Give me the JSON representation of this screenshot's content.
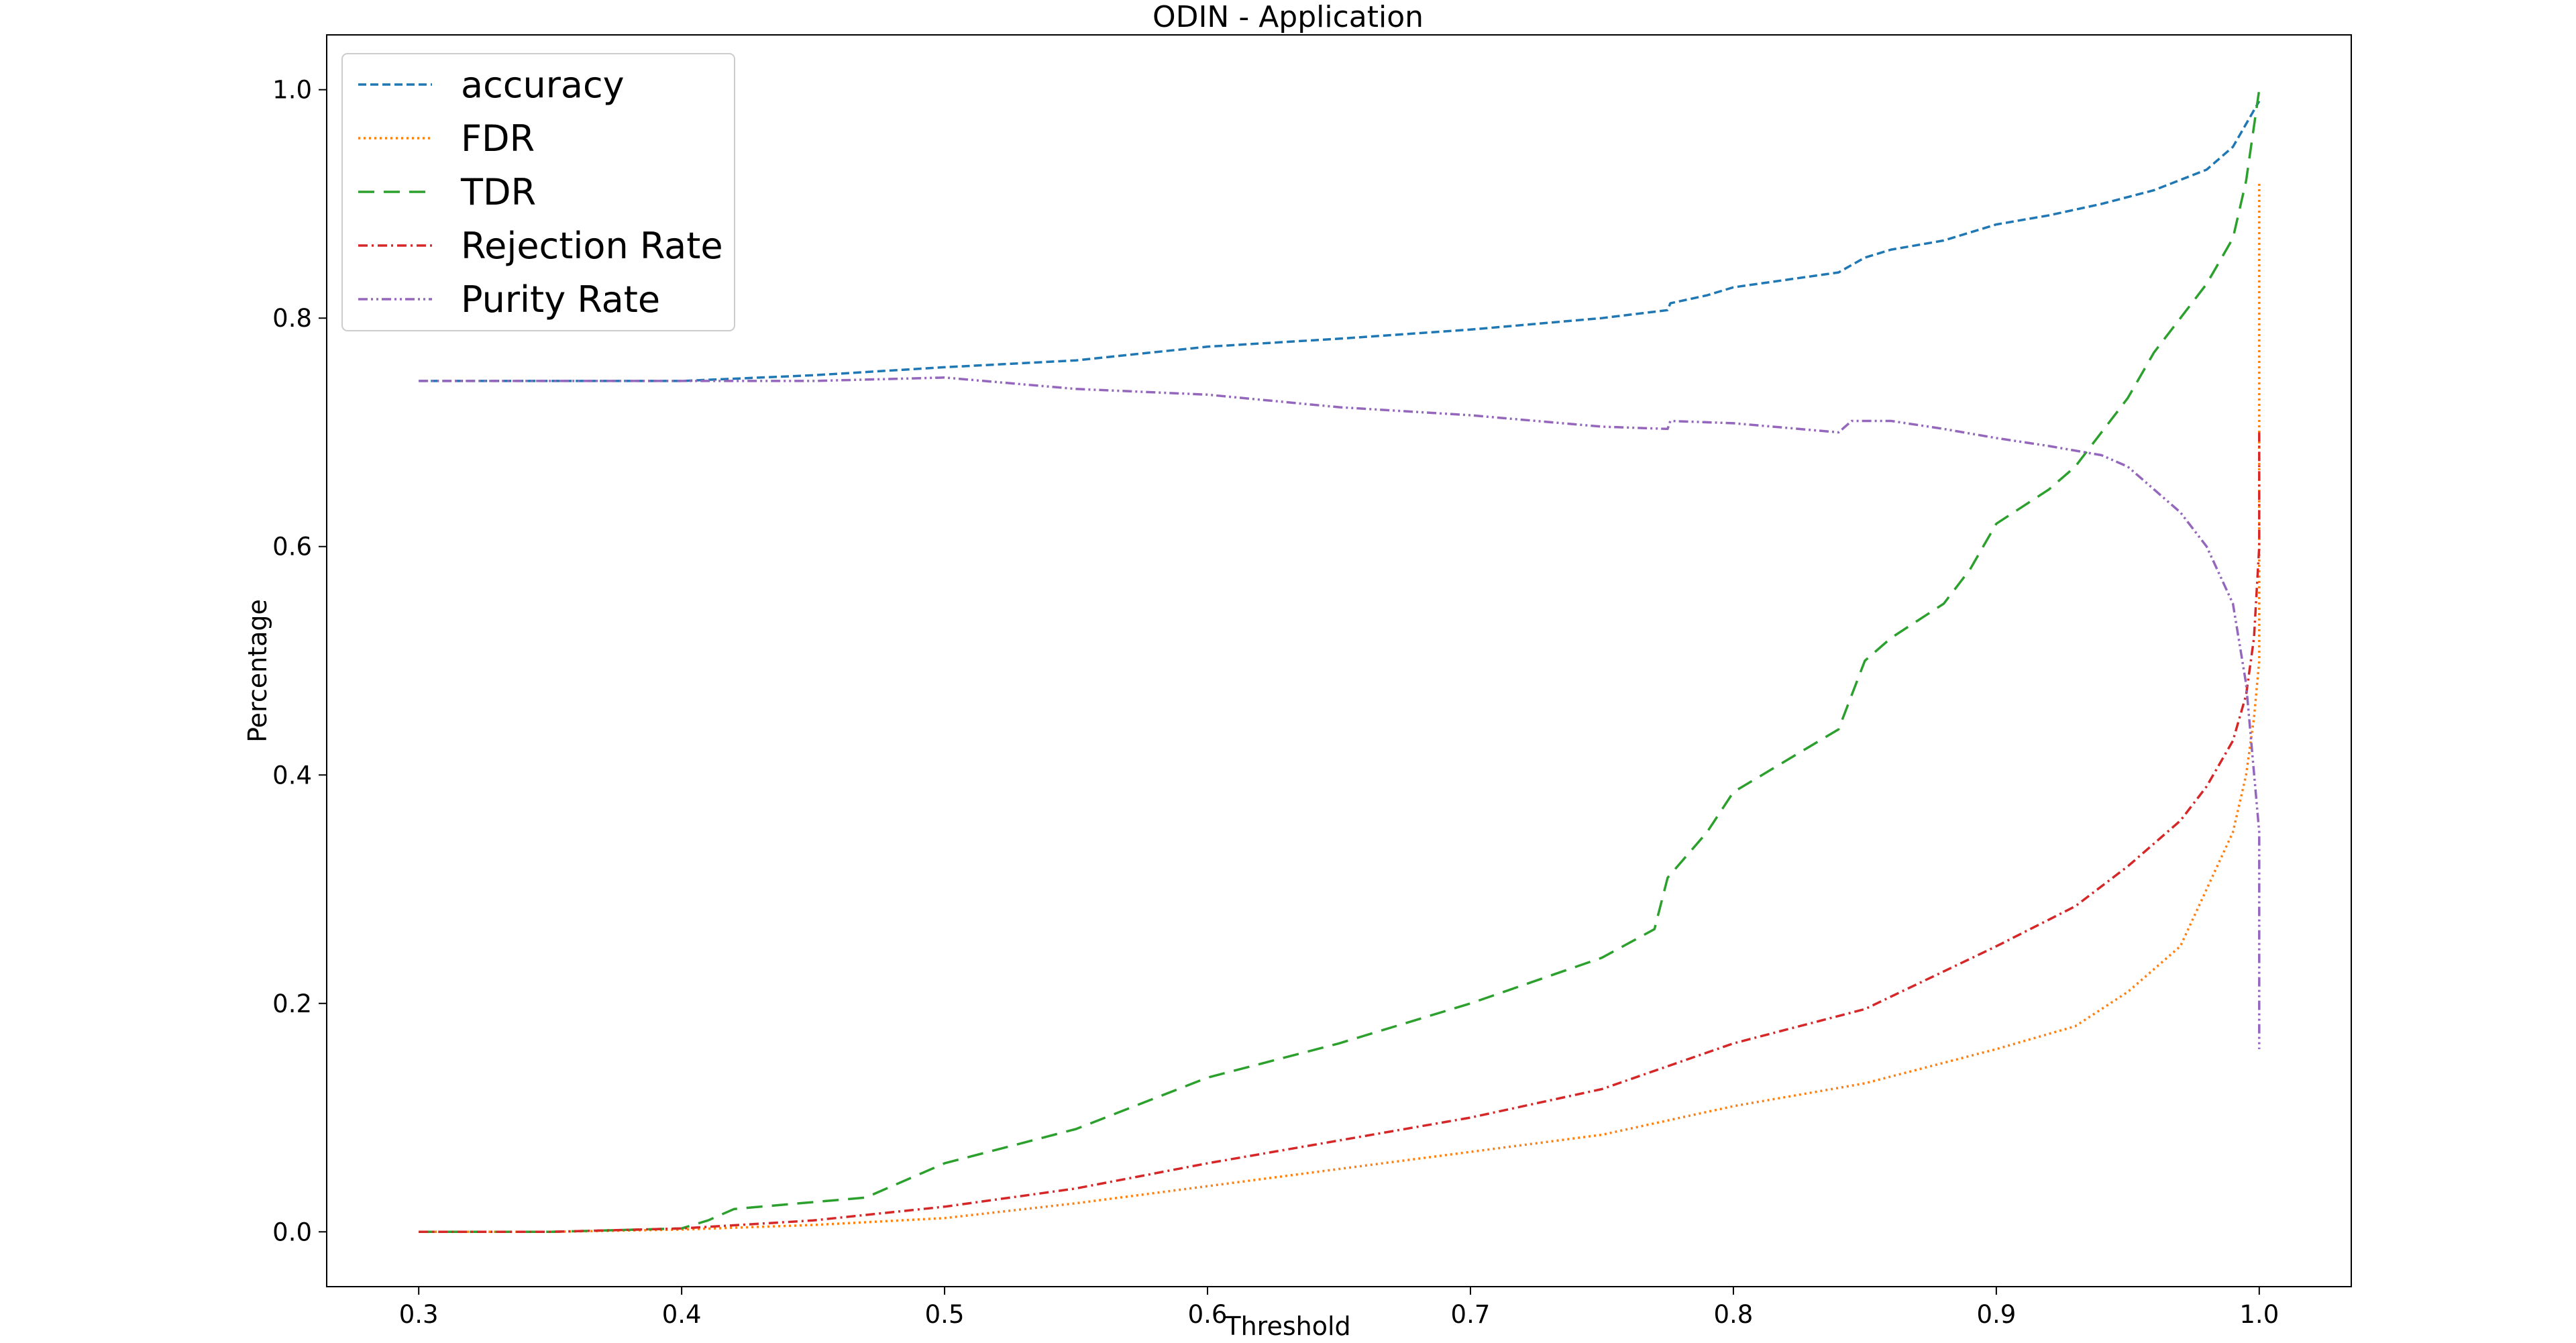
{
  "chart_data": {
    "type": "line",
    "title": "ODIN - Application",
    "xlabel": "Threshold",
    "ylabel": "Percentage",
    "xlim": [
      0.265,
      1.035
    ],
    "ylim": [
      -0.048,
      1.048
    ],
    "xticks": [
      0.3,
      0.4,
      0.5,
      0.6,
      0.7,
      0.8,
      0.9,
      1.0
    ],
    "xtick_labels": [
      "0.3",
      "0.4",
      "0.5",
      "0.6",
      "0.7",
      "0.8",
      "0.9",
      "1.0"
    ],
    "yticks": [
      0.0,
      0.2,
      0.4,
      0.6,
      0.8,
      1.0
    ],
    "ytick_labels": [
      "0.0",
      "0.2",
      "0.4",
      "0.6",
      "0.8",
      "1.0"
    ],
    "grid": false,
    "legend_position": "top-left",
    "series": [
      {
        "name": "accuracy",
        "color": "#1f77b4",
        "dash": "12,6",
        "x": [
          0.3,
          0.35,
          0.4,
          0.45,
          0.5,
          0.55,
          0.6,
          0.65,
          0.7,
          0.75,
          0.775,
          0.776,
          0.79,
          0.8,
          0.84,
          0.85,
          0.86,
          0.88,
          0.9,
          0.92,
          0.94,
          0.96,
          0.98,
          0.99,
          0.995,
          1.0
        ],
        "y": [
          0.745,
          0.745,
          0.745,
          0.75,
          0.757,
          0.763,
          0.775,
          0.782,
          0.79,
          0.8,
          0.807,
          0.813,
          0.82,
          0.827,
          0.84,
          0.853,
          0.86,
          0.868,
          0.882,
          0.89,
          0.9,
          0.912,
          0.93,
          0.95,
          0.97,
          0.99
        ]
      },
      {
        "name": "FDR",
        "color": "#ff7f0e",
        "dash": "3,5",
        "x": [
          0.3,
          0.35,
          0.4,
          0.45,
          0.5,
          0.55,
          0.6,
          0.65,
          0.7,
          0.75,
          0.8,
          0.85,
          0.9,
          0.93,
          0.95,
          0.97,
          0.98,
          0.99,
          0.995,
          0.998,
          1.0,
          1.0
        ],
        "y": [
          0.0,
          0.0,
          0.002,
          0.006,
          0.012,
          0.025,
          0.04,
          0.055,
          0.07,
          0.085,
          0.11,
          0.13,
          0.16,
          0.18,
          0.21,
          0.25,
          0.3,
          0.35,
          0.4,
          0.45,
          0.5,
          0.92
        ]
      },
      {
        "name": "TDR",
        "color": "#2ca02c",
        "dash": "24,14",
        "x": [
          0.3,
          0.35,
          0.4,
          0.41,
          0.42,
          0.47,
          0.5,
          0.55,
          0.6,
          0.65,
          0.7,
          0.75,
          0.77,
          0.775,
          0.79,
          0.8,
          0.84,
          0.85,
          0.86,
          0.88,
          0.89,
          0.9,
          0.92,
          0.93,
          0.95,
          0.96,
          0.98,
          0.99,
          0.995,
          1.0
        ],
        "y": [
          0.0,
          0.0,
          0.003,
          0.01,
          0.02,
          0.03,
          0.06,
          0.09,
          0.135,
          0.165,
          0.2,
          0.24,
          0.265,
          0.31,
          0.35,
          0.385,
          0.44,
          0.5,
          0.52,
          0.55,
          0.58,
          0.62,
          0.65,
          0.67,
          0.73,
          0.77,
          0.83,
          0.87,
          0.92,
          1.0
        ]
      },
      {
        "name": "Rejection Rate",
        "color": "#d62728",
        "dash": "14,6,3,6",
        "x": [
          0.3,
          0.35,
          0.4,
          0.45,
          0.5,
          0.55,
          0.6,
          0.65,
          0.7,
          0.75,
          0.8,
          0.85,
          0.9,
          0.93,
          0.95,
          0.97,
          0.98,
          0.99,
          0.995,
          0.998,
          1.0,
          1.0
        ],
        "y": [
          0.0,
          0.0,
          0.003,
          0.01,
          0.022,
          0.038,
          0.06,
          0.08,
          0.1,
          0.125,
          0.165,
          0.195,
          0.25,
          0.285,
          0.32,
          0.36,
          0.39,
          0.43,
          0.47,
          0.52,
          0.6,
          0.7
        ]
      },
      {
        "name": "Purity Rate",
        "color": "#9467bd",
        "dash": "14,5,3,5,3,5",
        "x": [
          0.3,
          0.35,
          0.4,
          0.45,
          0.5,
          0.55,
          0.6,
          0.65,
          0.7,
          0.75,
          0.775,
          0.776,
          0.8,
          0.84,
          0.845,
          0.86,
          0.88,
          0.9,
          0.92,
          0.94,
          0.95,
          0.97,
          0.98,
          0.99,
          0.995,
          1.0,
          1.0
        ],
        "y": [
          0.745,
          0.745,
          0.745,
          0.745,
          0.748,
          0.738,
          0.733,
          0.722,
          0.715,
          0.705,
          0.703,
          0.71,
          0.708,
          0.7,
          0.71,
          0.71,
          0.703,
          0.695,
          0.688,
          0.68,
          0.67,
          0.63,
          0.6,
          0.55,
          0.48,
          0.35,
          0.16
        ]
      }
    ]
  }
}
